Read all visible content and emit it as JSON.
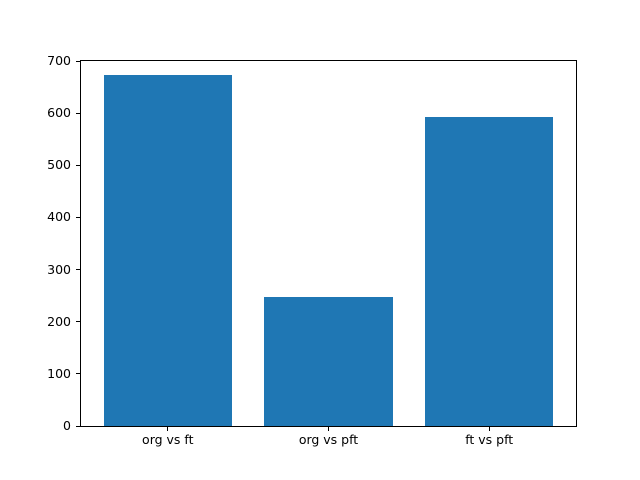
{
  "figure": {
    "background": "#ffffff"
  },
  "chart_data": {
    "type": "bar",
    "categories": [
      "org vs ft",
      "org vs pft",
      "ft vs pft"
    ],
    "values": [
      674,
      248,
      592
    ],
    "title": "",
    "xlabel": "",
    "ylabel": "",
    "ylim": [
      0,
      700
    ],
    "yticks": [
      0,
      100,
      200,
      300,
      400,
      500,
      600,
      700
    ],
    "xlim": [
      -0.54,
      2.54
    ],
    "bar_width": 0.8,
    "bar_color": "#1f77b4",
    "axis_color": "#000000",
    "tick_label_color": "#000000",
    "grid": false,
    "legend": null
  }
}
